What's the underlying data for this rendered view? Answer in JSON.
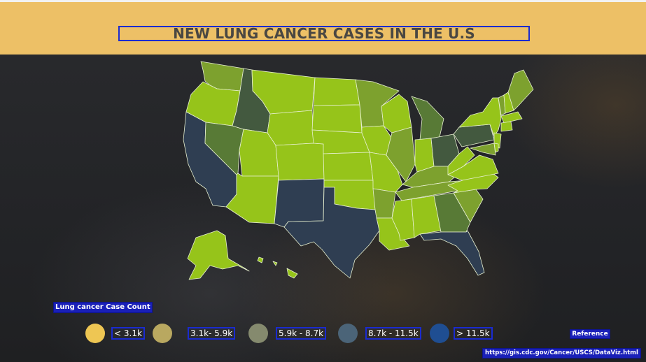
{
  "title": "NEW LUNG CANCER CASES IN THE U.S",
  "legend": {
    "title": "Lung cancer Case Count",
    "items": [
      {
        "label": "< 3.1k",
        "color": "#eec653"
      },
      {
        "label": "3.1k- 5.9k",
        "color": "#b9a860"
      },
      {
        "label": "5.9k - 8.7k",
        "color": "#858a6e"
      },
      {
        "label": "8.7k - 11.5k",
        "color": "#4b6478"
      },
      {
        "label": "> 11.5k",
        "color": "#1f4e92"
      }
    ]
  },
  "reference": {
    "label": "Reference",
    "url": "https://gis.cdc.gov/Cancer/USCS/DataViz.html"
  },
  "map_colors": {
    "light": "#96c41a",
    "mid": "#7da12e",
    "dark": "#587a36",
    "darker": "#43593f",
    "darkest": "#2f3e52"
  }
}
